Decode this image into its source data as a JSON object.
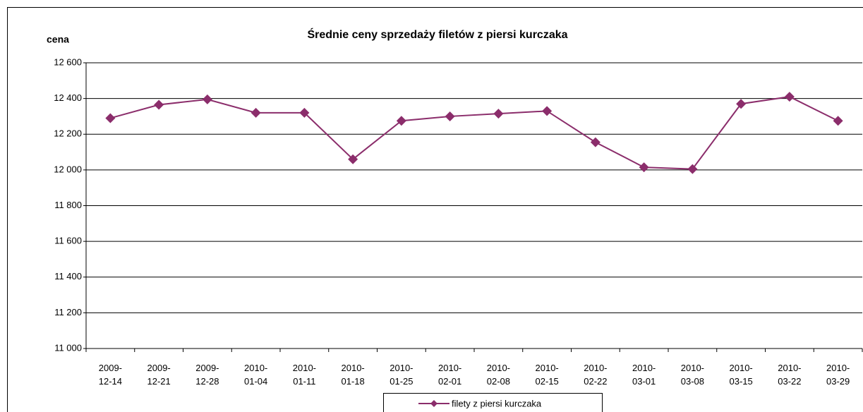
{
  "chart_data": {
    "type": "line",
    "title": "Średnie ceny sprzedaży filetów z piersi kurczaka",
    "y_label": "cena",
    "categories": [
      "2009-12-14",
      "2009-12-21",
      "2009-12-28",
      "2010-01-04",
      "2010-01-11",
      "2010-01-18",
      "2010-01-25",
      "2010-02-01",
      "2010-02-08",
      "2010-02-15",
      "2010-02-22",
      "2010-03-01",
      "2010-03-08",
      "2010-03-15",
      "2010-03-22",
      "2010-03-29"
    ],
    "series": [
      {
        "name": "filety z piersi kurczaka",
        "color": "#8b2d6b",
        "values": [
          12290,
          12365,
          12395,
          12320,
          12320,
          12060,
          12275,
          12300,
          12315,
          12330,
          12155,
          12015,
          12005,
          12370,
          12410,
          12275
        ]
      }
    ],
    "ylim": [
      11000,
      12600
    ],
    "yticks": [
      {
        "value": 11000,
        "label": "11 000"
      },
      {
        "value": 11200,
        "label": "11 200"
      },
      {
        "value": 11400,
        "label": "11 400"
      },
      {
        "value": 11600,
        "label": "11 600"
      },
      {
        "value": 11800,
        "label": "11 800"
      },
      {
        "value": 12000,
        "label": "12 000"
      },
      {
        "value": 12200,
        "label": "12 200"
      },
      {
        "value": 12400,
        "label": "12 400"
      },
      {
        "value": 12600,
        "label": "12 600"
      }
    ],
    "grid": true,
    "legend": "bottom"
  }
}
